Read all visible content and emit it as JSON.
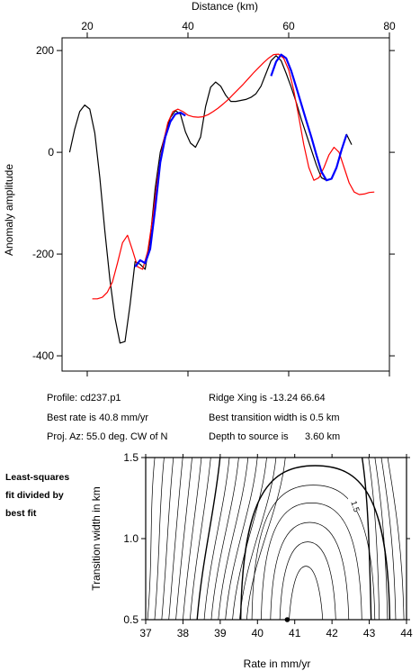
{
  "chart_data": [
    {
      "type": "line",
      "xlabel": "Distance (km)",
      "ylabel": "Anomaly amplitude",
      "xlim": [
        15,
        80
      ],
      "ylim": [
        -430,
        225
      ],
      "x_ticks": [
        20,
        40,
        60,
        80
      ],
      "y_ticks": [
        200,
        0,
        -200,
        -400
      ],
      "series": [
        {
          "color": "#000000",
          "x": [
            16.5,
            17.5,
            18.5,
            19.5,
            20.5,
            21.5,
            22.5,
            23.5,
            24.5,
            25.5,
            26.5,
            27.5,
            28.5,
            29.5,
            30.5,
            31.5,
            32.5,
            33.5,
            34.5,
            35.5,
            36.5,
            37.5,
            38.5,
            39.5,
            40.5,
            41.5,
            42.5,
            43.5,
            44.5,
            45.5,
            46.5,
            47.5,
            48.5,
            49.5,
            50.5,
            51.5,
            52.5,
            53.5,
            54.5,
            55.5,
            56.5,
            57.5,
            58.5,
            59.5,
            60.5,
            61.5,
            62.5,
            63.5,
            64.5,
            65.5,
            66.5,
            67.5,
            68.5,
            69.5,
            70.5,
            71.5,
            72.5
          ],
          "y": [
            0,
            45,
            80,
            93,
            85,
            38,
            -50,
            -155,
            -250,
            -325,
            -375,
            -372,
            -300,
            -215,
            -220,
            -230,
            -170,
            -70,
            0,
            35,
            68,
            82,
            75,
            40,
            18,
            10,
            30,
            90,
            128,
            138,
            130,
            112,
            100,
            100,
            102,
            104,
            108,
            115,
            130,
            155,
            180,
            190,
            180,
            155,
            128,
            98,
            65,
            35,
            5,
            -25,
            -50,
            -55,
            -52,
            -30,
            5,
            35,
            15
          ]
        },
        {
          "color": "#ff0000",
          "x": [
            21,
            22,
            23,
            24,
            25,
            26,
            27,
            28,
            29,
            30,
            31,
            32,
            33,
            34,
            35,
            36,
            37,
            38,
            39,
            40,
            41,
            42,
            43,
            44,
            45,
            46,
            47,
            48,
            49,
            50,
            51,
            52,
            53,
            54,
            55,
            56,
            57,
            58,
            59,
            60,
            61,
            62,
            63,
            64,
            65,
            66,
            67,
            68,
            69,
            70,
            71,
            72,
            73,
            74,
            75,
            76,
            77
          ],
          "y": [
            -288,
            -288,
            -285,
            -275,
            -255,
            -218,
            -178,
            -163,
            -193,
            -225,
            -230,
            -195,
            -128,
            -48,
            15,
            58,
            80,
            85,
            80,
            73,
            70,
            69,
            70,
            74,
            80,
            87,
            95,
            104,
            114,
            124,
            134,
            145,
            156,
            166,
            176,
            185,
            192,
            193,
            185,
            162,
            122,
            70,
            15,
            -30,
            -55,
            -50,
            -30,
            -5,
            10,
            0,
            -30,
            -60,
            -78,
            -83,
            -82,
            -79,
            -78
          ]
        },
        {
          "color": "#0000ff",
          "x": [
            29.5,
            30.5,
            31.5,
            32.5,
            33.5,
            34.5,
            35.5,
            36.5,
            37.5,
            38.5,
            39.5,
            40.5,
            41.5,
            42.5,
            43.5,
            44.5,
            45.5,
            46.5,
            47.5,
            48.5,
            49.5,
            50.5,
            51.5,
            52.5,
            53.5,
            54.5,
            55.5,
            56.5,
            57.5,
            58.5,
            59.5,
            60.5,
            61.5,
            62.5,
            63.5,
            64.5,
            65.5,
            66.5,
            67.5,
            68.5,
            69.5,
            70.5,
            71.5
          ],
          "y": [
            -225,
            -212,
            -218,
            -190,
            -110,
            -20,
            30,
            60,
            75,
            78,
            72,
            null,
            null,
            null,
            null,
            null,
            null,
            null,
            null,
            null,
            null,
            null,
            null,
            null,
            null,
            null,
            null,
            150,
            178,
            192,
            185,
            160,
            128,
            95,
            62,
            30,
            -5,
            -38,
            -55,
            -52,
            -30,
            5,
            35
          ]
        }
      ]
    },
    {
      "type": "contour",
      "xlabel": "Rate in mm/yr",
      "ylabel": "Transition width in km",
      "xlim": [
        37,
        44
      ],
      "ylim": [
        0.5,
        1.5
      ],
      "x_ticks": [
        37,
        38,
        39,
        40,
        41,
        42,
        43,
        44
      ],
      "y_ticks": [
        "0.5",
        "1.0",
        "1.5"
      ],
      "contour_label": "1.5",
      "best_fit_point": {
        "x": 40.8,
        "y": 0.5
      }
    }
  ],
  "info": {
    "profile": "Profile: cd237.p1",
    "best_rate": "Best rate is 40.8 mm/yr",
    "proj_az": "Proj. Az: 55.0 deg. CW of N",
    "ridge_xing": "Ridge Xing is -13.24 66.64",
    "best_transition": "Best transition width is 0.5 km",
    "depth_label": "Depth to source is",
    "depth_value": "3.60 km"
  },
  "side_note": {
    "line1": "Least-squares",
    "line2": "fit divided by",
    "line3": "best fit"
  }
}
